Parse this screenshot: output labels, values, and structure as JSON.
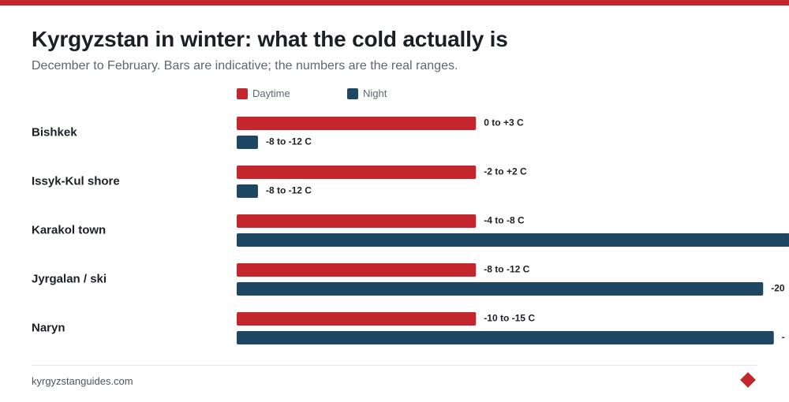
{
  "header": {
    "title": "Kyrgyzstan in winter: what the cold actually is",
    "subtitle": "December to February. Bars are indicative; the numbers are the real ranges."
  },
  "colors": {
    "accent": "#c4262e",
    "daytime": "#c4262e",
    "night": "#1d4763"
  },
  "chart_data": {
    "type": "bar",
    "orientation": "horizontal",
    "title": "Kyrgyzstan in winter: what the cold actually is",
    "subtitle": "December to February. Bars are indicative; the numbers are the real ranges.",
    "legend_position": "top",
    "grid": false,
    "categories": [
      "Bishkek",
      "Issyk-Kul shore",
      "Karakol town",
      "Jyrgalan / ski",
      "Naryn"
    ],
    "series": [
      {
        "name": "Daytime",
        "color": "#c4262e",
        "values": [
          45,
          45,
          45,
          45,
          45
        ],
        "labels": [
          "0 to +3 C",
          "-2 to +2 C",
          "-4 to -8 C",
          "-8 to -12 C",
          "-10 to -15 C"
        ]
      },
      {
        "name": "Night",
        "color": "#1d4763",
        "values": [
          4,
          4,
          104,
          99,
          101
        ],
        "labels": [
          "-8 to -12 C",
          "-8 to -12 C",
          "",
          "-20",
          "-"
        ]
      }
    ],
    "xlim": [
      0,
      100
    ]
  },
  "footer": {
    "source": "kyrgyzstanguides.com"
  }
}
